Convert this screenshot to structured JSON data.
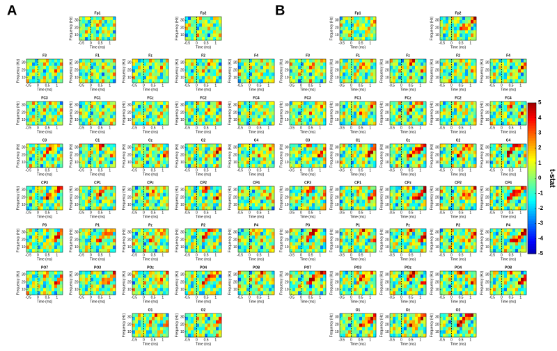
{
  "panels": [
    {
      "label": "A",
      "rows": [
        [
          null,
          "Fp1",
          null,
          "Fp2",
          null
        ],
        [
          "F3",
          "F1",
          "Fz",
          "F2",
          "F4"
        ],
        [
          "FC3",
          "FC1",
          "FCz",
          "FC2",
          "FC4"
        ],
        [
          "C3",
          "C1",
          "Cz",
          "C2",
          "C4"
        ],
        [
          "CP3",
          "CP1",
          "CPz",
          "CP2",
          "CP4"
        ],
        [
          "P3",
          "P1",
          "Pz",
          "P2",
          "P4"
        ],
        [
          "PO7",
          "PO3",
          "POz",
          "PO4",
          "PO8"
        ],
        [
          null,
          null,
          "O1",
          "O2",
          null
        ]
      ]
    },
    {
      "label": "B",
      "rows": [
        [
          null,
          "Fp1",
          null,
          "Fp2",
          null
        ],
        [
          "F3",
          "F1",
          "Fz",
          "F2",
          "F4"
        ],
        [
          "FC3",
          "FC1",
          "FCz",
          "FC2",
          "FC4"
        ],
        [
          "C3",
          "C1",
          "Cz",
          "C2",
          "C4"
        ],
        [
          "CP3",
          "CP1",
          "CPz",
          "CP2",
          "CP4"
        ],
        [
          "P3",
          "P1",
          "Pz",
          "P2",
          "P4"
        ],
        [
          "PO7",
          "PO3",
          "POz",
          "PO4",
          "PO8"
        ],
        [
          null,
          "O1",
          "Oz",
          "O2",
          null
        ]
      ]
    }
  ],
  "axes": {
    "y_label": "Frequency (Hz)",
    "x_label": "Time (ms)",
    "yticks": [
      10,
      20,
      30
    ],
    "ylim": [
      3,
      35
    ],
    "xticks": [
      -0.5,
      0,
      0.5,
      1
    ],
    "xlim": [
      -0.6,
      1.3
    ]
  },
  "colorbar": {
    "label": "t-stat",
    "lim": [
      -5,
      5
    ],
    "ticks": [
      -5,
      -4,
      -3,
      -2,
      -1,
      0,
      1,
      2,
      3,
      4,
      5
    ]
  }
}
